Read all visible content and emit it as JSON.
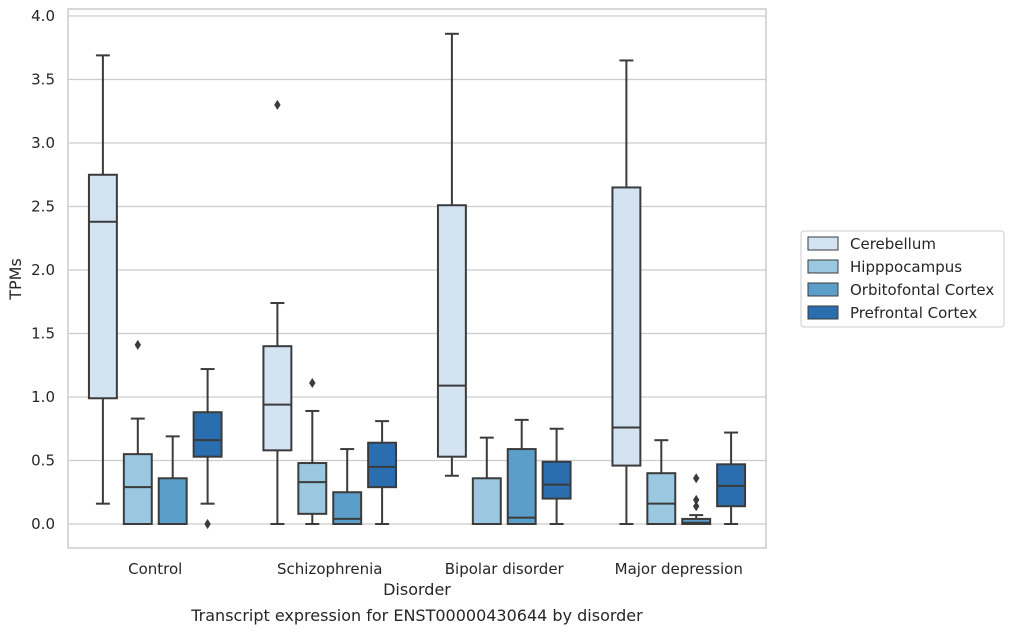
{
  "chart_data": {
    "type": "box",
    "title": "",
    "xlabel": "Disorder",
    "ylabel": "TPMs",
    "ylim": [
      -0.18,
      4.05
    ],
    "yticks": [
      "0.0",
      "0.5",
      "1.0",
      "1.5",
      "2.0",
      "2.5",
      "3.0",
      "3.5",
      "4.0"
    ],
    "grid": true,
    "legend_position": "right",
    "categories": [
      "Control",
      "Schizophrenia",
      "Bipolar disorder",
      "Major depression"
    ],
    "series": [
      {
        "name": "Cerebellum",
        "color": "#d3e3f2",
        "boxes": [
          {
            "whislo": 0.16,
            "q1": 0.99,
            "med": 2.38,
            "q3": 2.75,
            "whishi": 3.69,
            "fliers": []
          },
          {
            "whislo": 0.0,
            "q1": 0.58,
            "med": 0.94,
            "q3": 1.4,
            "whishi": 1.74,
            "fliers": [
              3.3
            ]
          },
          {
            "whislo": 0.38,
            "q1": 0.53,
            "med": 1.09,
            "q3": 2.51,
            "whishi": 3.86,
            "fliers": []
          },
          {
            "whislo": 0.0,
            "q1": 0.46,
            "med": 0.76,
            "q3": 2.65,
            "whishi": 3.65,
            "fliers": []
          }
        ]
      },
      {
        "name": "Hipppocampus",
        "color": "#9ac8e0",
        "boxes": [
          {
            "whislo": 0.0,
            "q1": 0.0,
            "med": 0.29,
            "q3": 0.55,
            "whishi": 0.83,
            "fliers": [
              1.41
            ]
          },
          {
            "whislo": 0.0,
            "q1": 0.08,
            "med": 0.33,
            "q3": 0.48,
            "whishi": 0.89,
            "fliers": [
              1.11
            ]
          },
          {
            "whislo": 0.0,
            "q1": 0.0,
            "med": 0.0,
            "q3": 0.36,
            "whishi": 0.68,
            "fliers": []
          },
          {
            "whislo": 0.0,
            "q1": 0.0,
            "med": 0.16,
            "q3": 0.4,
            "whishi": 0.66,
            "fliers": []
          }
        ]
      },
      {
        "name": "Orbitofontal Cortex",
        "color": "#5b9ec9",
        "boxes": [
          {
            "whislo": 0.0,
            "q1": 0.0,
            "med": 0.0,
            "q3": 0.36,
            "whishi": 0.69,
            "fliers": []
          },
          {
            "whislo": 0.0,
            "q1": 0.0,
            "med": 0.04,
            "q3": 0.25,
            "whishi": 0.59,
            "fliers": []
          },
          {
            "whislo": 0.0,
            "q1": 0.0,
            "med": 0.05,
            "q3": 0.59,
            "whishi": 0.82,
            "fliers": []
          },
          {
            "whislo": 0.0,
            "q1": 0.0,
            "med": 0.01,
            "q3": 0.04,
            "whishi": 0.07,
            "fliers": [
              0.14,
              0.19,
              0.36
            ]
          }
        ]
      },
      {
        "name": "Prefrontal Cortex",
        "color": "#2a6eaf",
        "boxes": [
          {
            "whislo": 0.16,
            "q1": 0.53,
            "med": 0.66,
            "q3": 0.88,
            "whishi": 1.22,
            "fliers": [
              0.0
            ]
          },
          {
            "whislo": 0.0,
            "q1": 0.29,
            "med": 0.45,
            "q3": 0.64,
            "whishi": 0.81,
            "fliers": []
          },
          {
            "whislo": 0.0,
            "q1": 0.2,
            "med": 0.31,
            "q3": 0.49,
            "whishi": 0.75,
            "fliers": []
          },
          {
            "whislo": 0.0,
            "q1": 0.14,
            "med": 0.3,
            "q3": 0.47,
            "whishi": 0.72,
            "fliers": []
          }
        ]
      }
    ]
  },
  "caption": "Transcript expression for ENST00000430644 by disorder"
}
